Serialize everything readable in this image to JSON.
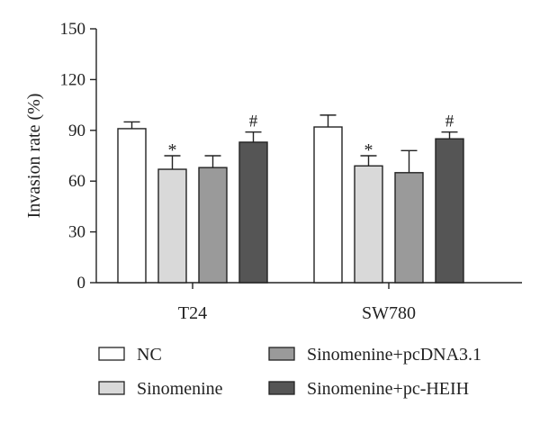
{
  "chart_data": {
    "type": "bar",
    "title": "",
    "xlabel": "",
    "ylabel": "Invasion rate (%)",
    "ylim": [
      0,
      150
    ],
    "yticks": [
      0,
      30,
      60,
      90,
      120,
      150
    ],
    "categories": [
      "T24",
      "SW780"
    ],
    "grid": false,
    "legend_position": "bottom",
    "series": [
      {
        "name": "NC",
        "color": "#ffffff",
        "values": [
          91,
          92
        ],
        "errors": [
          4,
          7
        ],
        "annotations": [
          "",
          ""
        ]
      },
      {
        "name": "Sinomenine",
        "color": "#d9d9d9",
        "values": [
          67,
          69
        ],
        "errors": [
          8,
          6
        ],
        "annotations": [
          "*",
          "*"
        ]
      },
      {
        "name": "Sinomenine+pcDNA3.1",
        "color": "#9a9a9a",
        "values": [
          68,
          65
        ],
        "errors": [
          7,
          13
        ],
        "annotations": [
          "",
          ""
        ]
      },
      {
        "name": "Sinomenine+pc-HEIH",
        "color": "#555555",
        "values": [
          83,
          85
        ],
        "errors": [
          6,
          4
        ],
        "annotations": [
          "#",
          "#"
        ]
      }
    ]
  }
}
